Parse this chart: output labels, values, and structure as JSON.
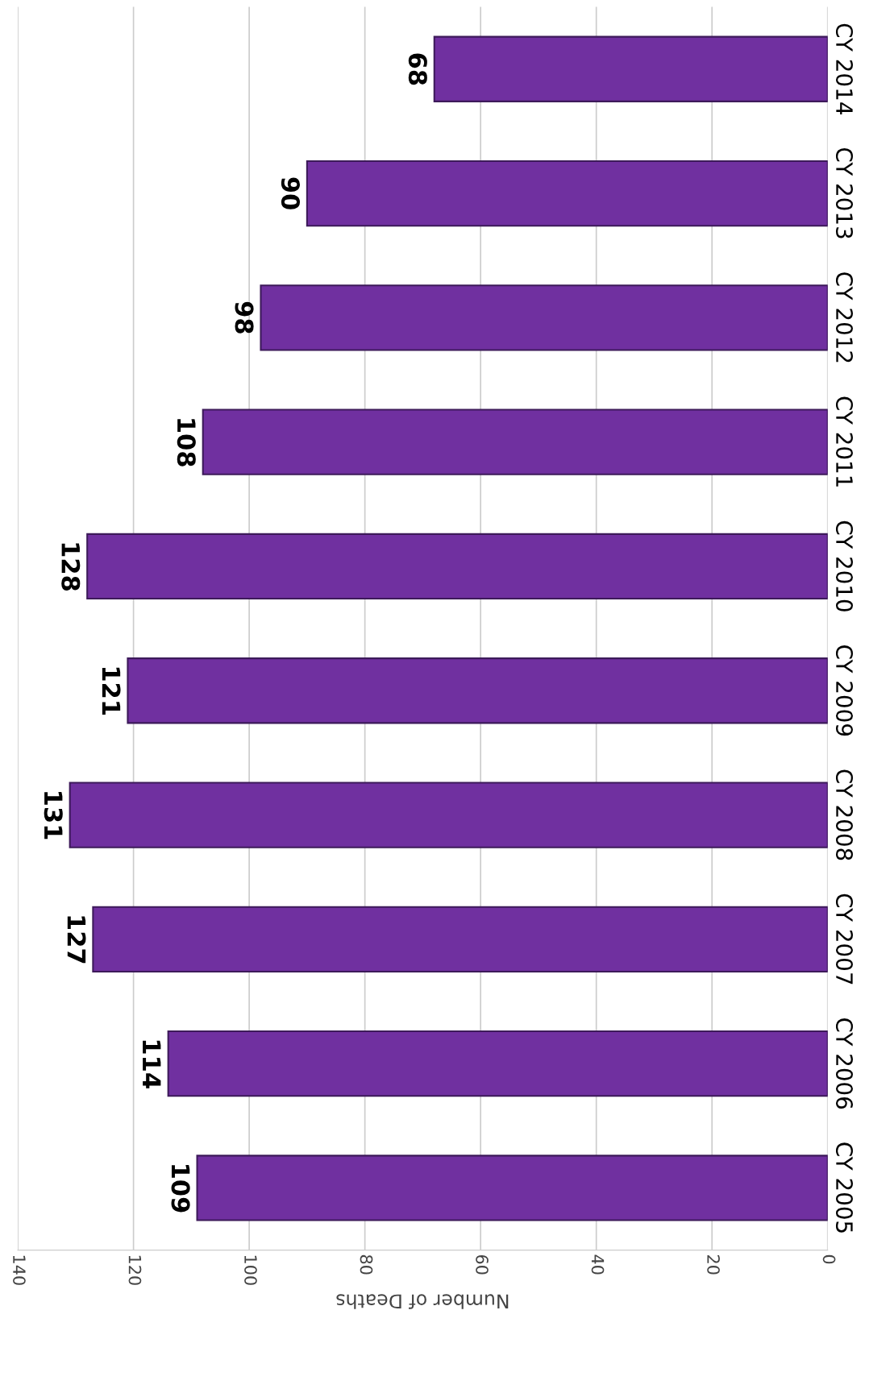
{
  "chart_data": {
    "type": "bar",
    "orientation": "horizontal",
    "xlabel": "Number of Deaths",
    "categories": [
      "CY 2014",
      "CY 2013",
      "CY 2012",
      "CY 2011",
      "CY 2010",
      "CY 2009",
      "CY 2008",
      "CY 2007",
      "CY 2006",
      "CY 2005"
    ],
    "values": [
      68,
      90,
      98,
      108,
      128,
      121,
      131,
      127,
      114,
      109
    ],
    "color": "#7030a0",
    "xlim": [
      140,
      0
    ],
    "xticks": [
      0,
      20,
      40,
      60,
      80,
      100,
      120,
      140
    ],
    "grid": "x",
    "data_labels": true
  }
}
